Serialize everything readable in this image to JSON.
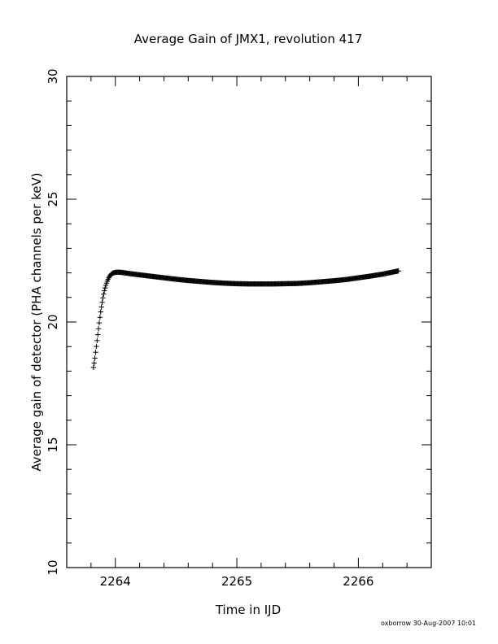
{
  "chart_data": {
    "type": "scatter",
    "title": "Average Gain of JMX1, revolution 417",
    "xlabel": "Time in IJD",
    "ylabel": "Average gain of detector (PHA channels per keV)",
    "xlim": [
      2263.6,
      2266.6
    ],
    "ylim": [
      10,
      30
    ],
    "x_ticks": [
      2264,
      2265,
      2266
    ],
    "x_tick_labels": [
      "2264",
      "2265",
      "2266"
    ],
    "y_ticks": [
      10,
      15,
      20,
      25,
      30
    ],
    "y_tick_labels": [
      "10",
      "15",
      "20",
      "25",
      "30"
    ],
    "marker": "+",
    "grid": false,
    "footer": "oxborrow 30-Aug-2007 10:01",
    "series": [
      {
        "marker": "+",
        "x": [
          2263.82,
          2263.83,
          2263.84,
          2263.85,
          2263.86,
          2263.87,
          2263.88,
          2263.89,
          2263.9,
          2263.91,
          2263.92,
          2263.93,
          2263.94,
          2263.95,
          2263.96,
          2263.97,
          2263.98,
          2263.99,
          2264.0,
          2264.02,
          2264.05,
          2264.08,
          2264.12,
          2264.2,
          2264.3,
          2264.4,
          2264.5,
          2264.6,
          2264.7,
          2264.8,
          2264.9,
          2265.0,
          2265.1,
          2265.2,
          2265.3,
          2265.4,
          2265.5,
          2265.6,
          2265.7,
          2265.8,
          2265.9,
          2266.0,
          2266.1,
          2266.2,
          2266.33
        ],
        "y": [
          18.15,
          18.45,
          18.85,
          19.25,
          19.65,
          20.05,
          20.42,
          20.75,
          21.05,
          21.28,
          21.47,
          21.62,
          21.74,
          21.84,
          21.91,
          21.96,
          21.99,
          22.01,
          22.02,
          22.03,
          22.02,
          22.0,
          21.97,
          21.92,
          21.86,
          21.8,
          21.74,
          21.69,
          21.65,
          21.61,
          21.58,
          21.56,
          21.55,
          21.55,
          21.55,
          21.56,
          21.57,
          21.6,
          21.64,
          21.68,
          21.73,
          21.8,
          21.87,
          21.95,
          22.08
        ]
      }
    ]
  }
}
